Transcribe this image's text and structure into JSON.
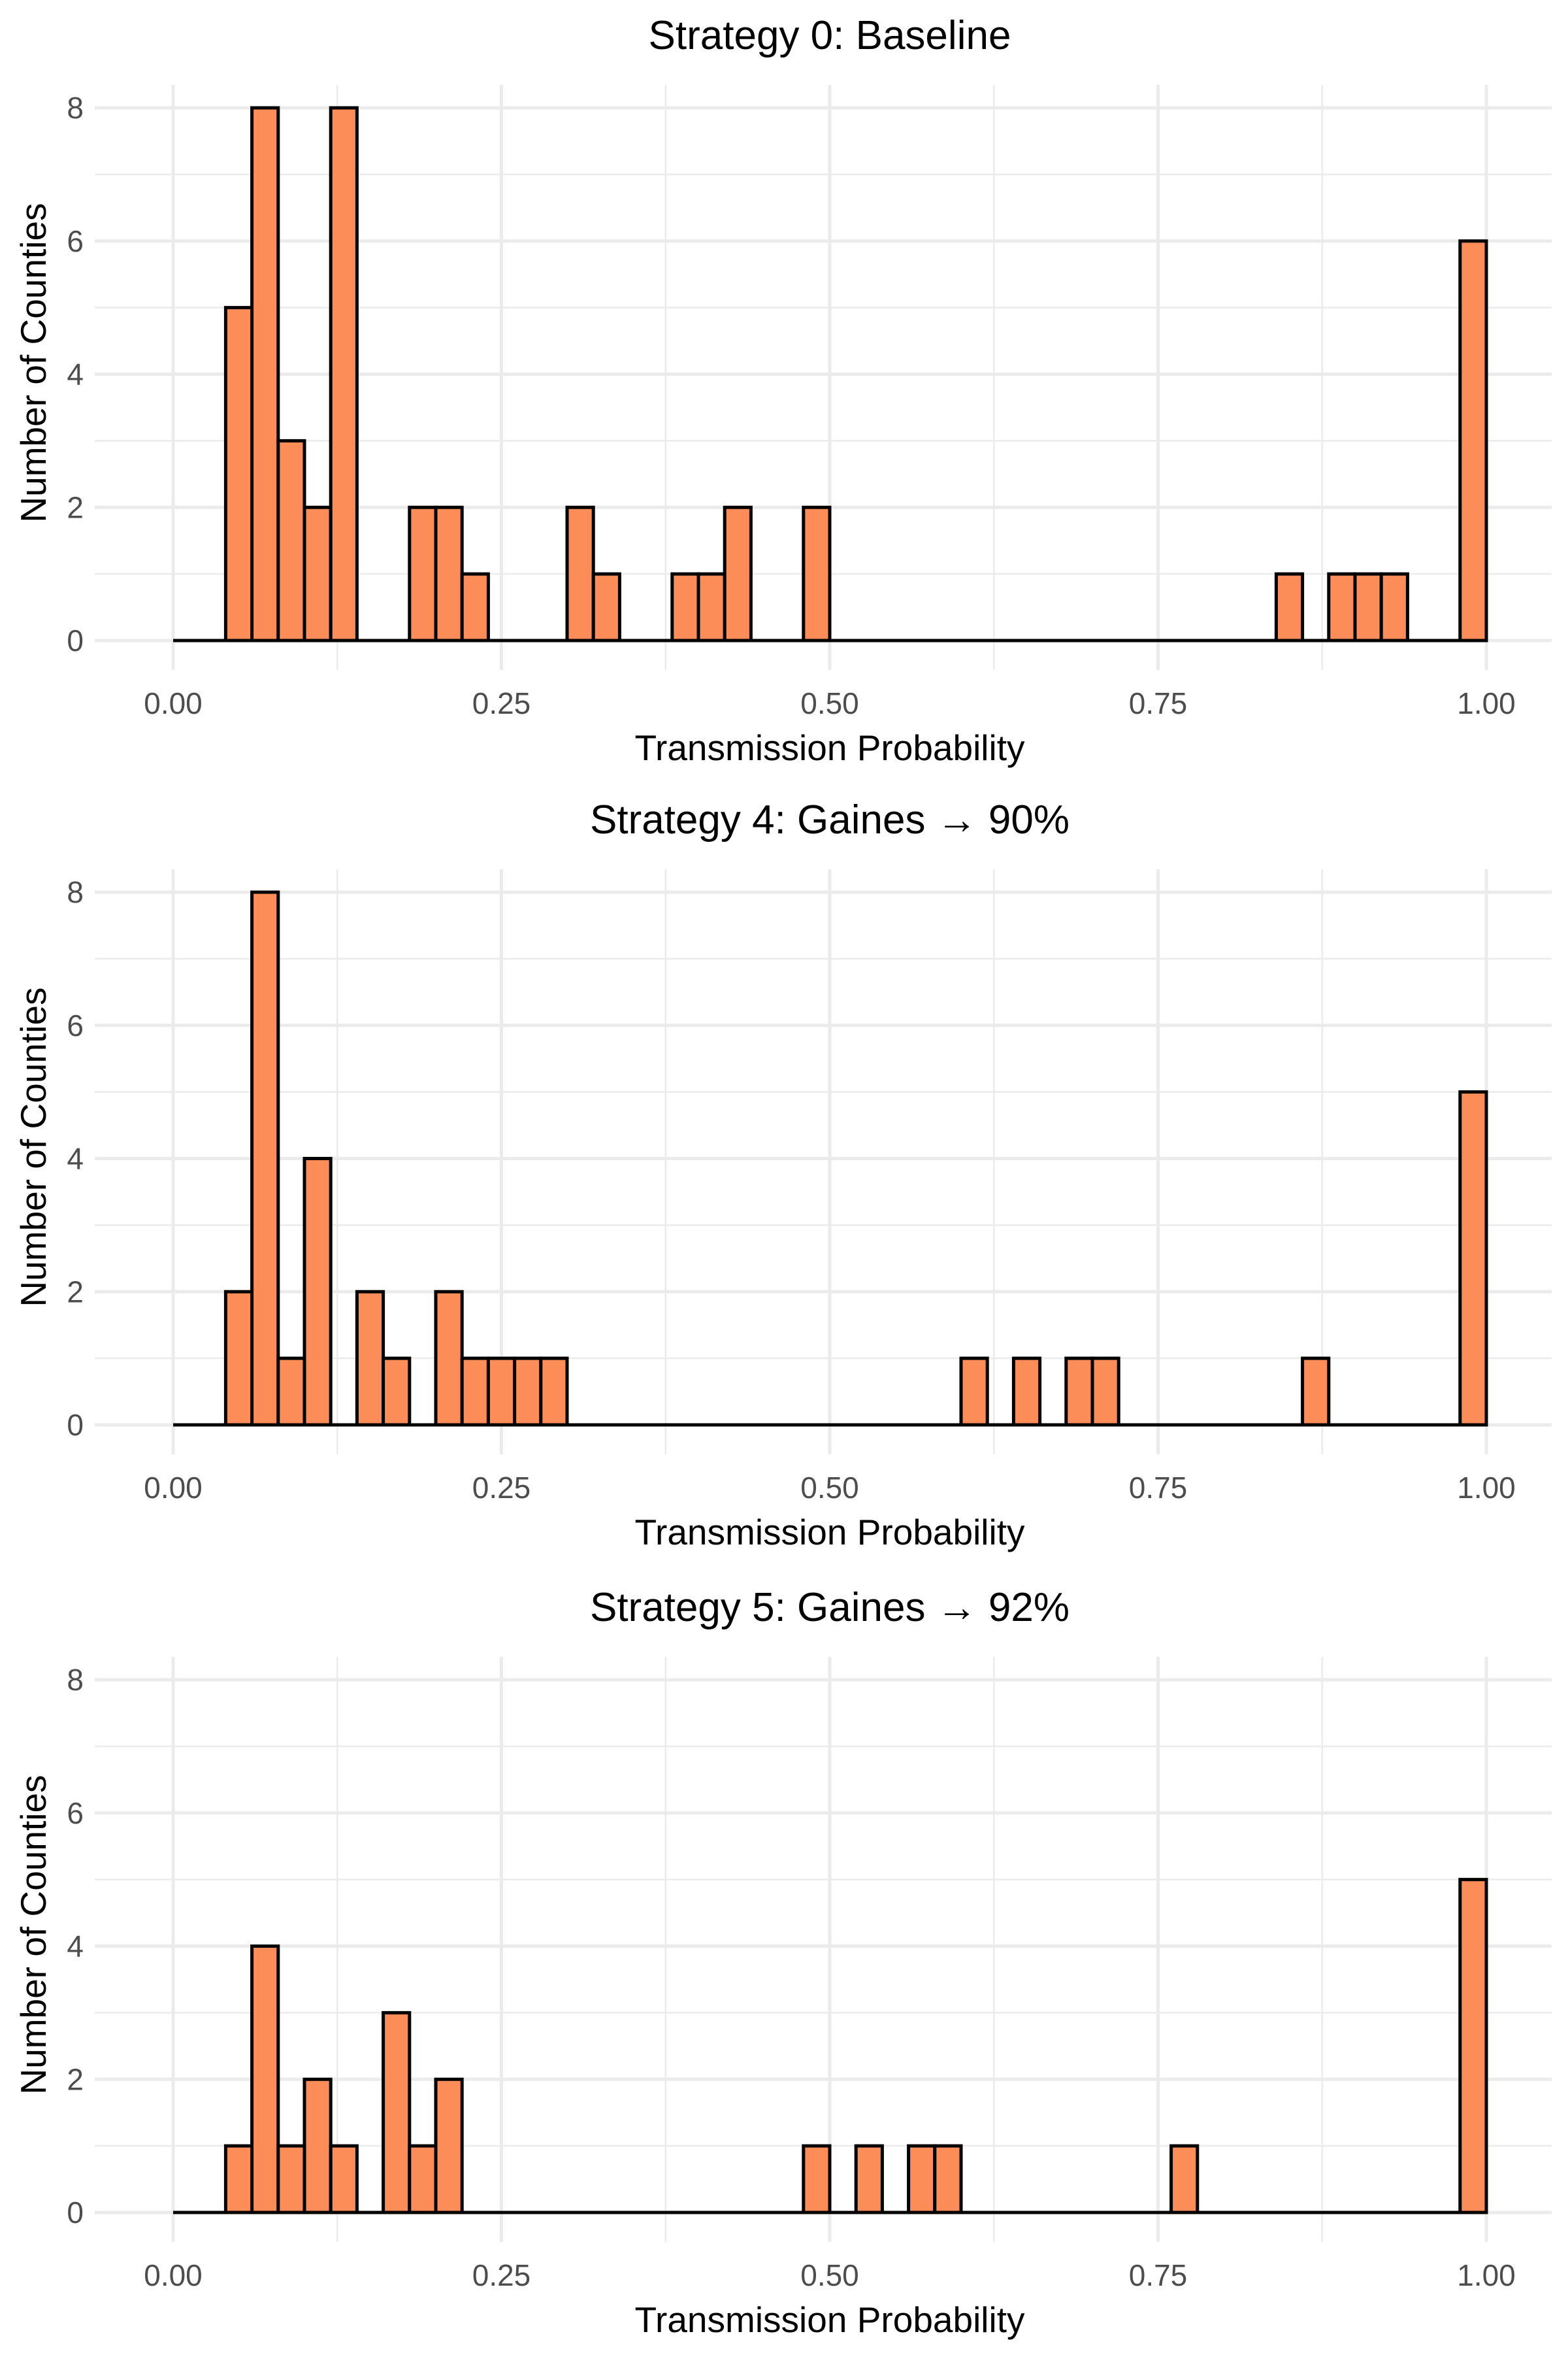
{
  "chart_data": [
    {
      "type": "bar",
      "title": "Strategy 0: Baseline",
      "xlabel": "Transmission Probability",
      "ylabel": "Number of Counties",
      "xlim": [
        0,
        1
      ],
      "ylim": [
        0,
        8
      ],
      "xticks": [
        "0.00",
        "0.25",
        "0.50",
        "0.75",
        "1.00"
      ],
      "yticks": [
        "0",
        "2",
        "4",
        "6",
        "8"
      ],
      "bin_width": 0.02,
      "bar_color": "#fc8d59",
      "bins": [
        {
          "x": 0.05,
          "count": 5
        },
        {
          "x": 0.07,
          "count": 8
        },
        {
          "x": 0.09,
          "count": 3
        },
        {
          "x": 0.11,
          "count": 2
        },
        {
          "x": 0.13,
          "count": 8
        },
        {
          "x": 0.19,
          "count": 2
        },
        {
          "x": 0.21,
          "count": 2
        },
        {
          "x": 0.23,
          "count": 1
        },
        {
          "x": 0.31,
          "count": 2
        },
        {
          "x": 0.33,
          "count": 1
        },
        {
          "x": 0.39,
          "count": 1
        },
        {
          "x": 0.41,
          "count": 1
        },
        {
          "x": 0.43,
          "count": 2
        },
        {
          "x": 0.49,
          "count": 2
        },
        {
          "x": 0.85,
          "count": 1
        },
        {
          "x": 0.89,
          "count": 1
        },
        {
          "x": 0.91,
          "count": 1
        },
        {
          "x": 0.93,
          "count": 1
        },
        {
          "x": 0.99,
          "count": 6
        }
      ]
    },
    {
      "type": "bar",
      "title": "Strategy 4: Gaines → 90%",
      "xlabel": "Transmission Probability",
      "ylabel": "Number of Counties",
      "xlim": [
        0,
        1
      ],
      "ylim": [
        0,
        8
      ],
      "xticks": [
        "0.00",
        "0.25",
        "0.50",
        "0.75",
        "1.00"
      ],
      "yticks": [
        "0",
        "2",
        "4",
        "6",
        "8"
      ],
      "bin_width": 0.02,
      "bar_color": "#fc8d59",
      "bins": [
        {
          "x": 0.05,
          "count": 2
        },
        {
          "x": 0.07,
          "count": 8
        },
        {
          "x": 0.09,
          "count": 1
        },
        {
          "x": 0.11,
          "count": 4
        },
        {
          "x": 0.15,
          "count": 2
        },
        {
          "x": 0.17,
          "count": 1
        },
        {
          "x": 0.21,
          "count": 2
        },
        {
          "x": 0.23,
          "count": 1
        },
        {
          "x": 0.25,
          "count": 1
        },
        {
          "x": 0.27,
          "count": 1
        },
        {
          "x": 0.29,
          "count": 1
        },
        {
          "x": 0.61,
          "count": 1
        },
        {
          "x": 0.65,
          "count": 1
        },
        {
          "x": 0.69,
          "count": 1
        },
        {
          "x": 0.71,
          "count": 1
        },
        {
          "x": 0.87,
          "count": 1
        },
        {
          "x": 0.99,
          "count": 5
        }
      ]
    },
    {
      "type": "bar",
      "title": "Strategy 5: Gaines → 92%",
      "xlabel": "Transmission Probability",
      "ylabel": "Number of Counties",
      "xlim": [
        0,
        1
      ],
      "ylim": [
        0,
        8
      ],
      "xticks": [
        "0.00",
        "0.25",
        "0.50",
        "0.75",
        "1.00"
      ],
      "yticks": [
        "0",
        "2",
        "4",
        "6",
        "8"
      ],
      "bin_width": 0.02,
      "bar_color": "#fc8d59",
      "bins": [
        {
          "x": 0.05,
          "count": 1
        },
        {
          "x": 0.07,
          "count": 4
        },
        {
          "x": 0.09,
          "count": 1
        },
        {
          "x": 0.11,
          "count": 2
        },
        {
          "x": 0.13,
          "count": 1
        },
        {
          "x": 0.17,
          "count": 3
        },
        {
          "x": 0.19,
          "count": 1
        },
        {
          "x": 0.21,
          "count": 2
        },
        {
          "x": 0.49,
          "count": 1
        },
        {
          "x": 0.53,
          "count": 1
        },
        {
          "x": 0.57,
          "count": 1
        },
        {
          "x": 0.59,
          "count": 1
        },
        {
          "x": 0.77,
          "count": 1
        },
        {
          "x": 0.99,
          "count": 5
        }
      ]
    }
  ]
}
